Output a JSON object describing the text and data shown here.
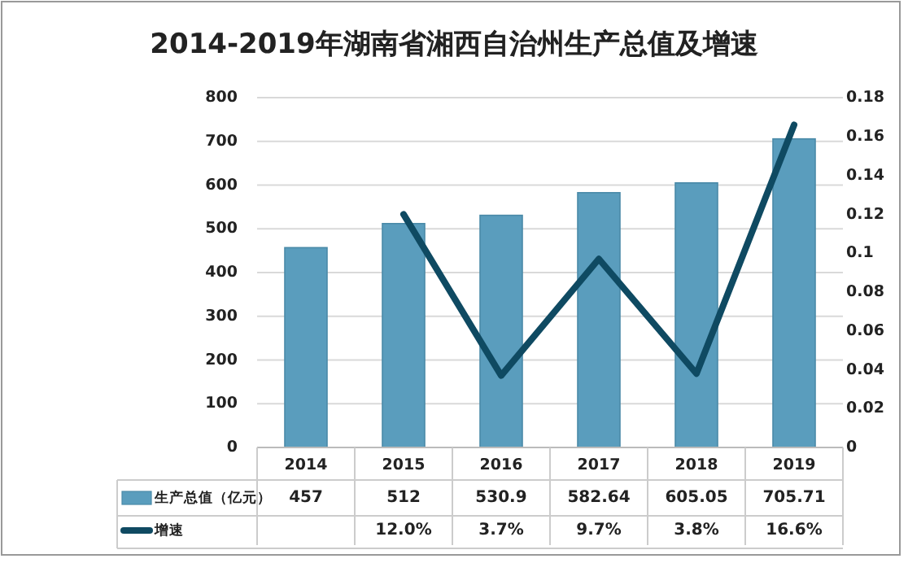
{
  "chart_data": {
    "type": "bar",
    "title": "2014-2019年湖南省湘西自治州生产总值及增速",
    "categories": [
      "2014",
      "2015",
      "2016",
      "2017",
      "2018",
      "2019"
    ],
    "series": [
      {
        "name": "生产总值（亿元）",
        "color": "#5a9dbd",
        "values": [
          457,
          512,
          530.9,
          582.64,
          605.05,
          705.71
        ],
        "value_labels": [
          "457",
          "512",
          "530.9",
          "582.64",
          "605.05",
          "705.71"
        ]
      },
      {
        "name": "增速",
        "type": "line",
        "axis": "y2",
        "color": "#0f4a62",
        "values": [
          null,
          0.12,
          0.037,
          0.097,
          0.038,
          0.166
        ],
        "value_labels": [
          null,
          "12.0%",
          "3.7%",
          "9.7%",
          "3.8%",
          "16.6%"
        ]
      }
    ],
    "ylim": [
      0,
      800
    ],
    "yticks": [
      0,
      100,
      200,
      300,
      400,
      500,
      600,
      700,
      800
    ],
    "y2lim": [
      0,
      0.18
    ],
    "y2ticks": [
      0,
      {
        "value": 0.02,
        "label": "0.02"
      },
      {
        "value": 0.04,
        "label": "0.04"
      },
      {
        "value": 0.06,
        "label": "0.06"
      },
      {
        "value": 0.08,
        "label": "0.08"
      },
      {
        "value": 0.1,
        "label": "0.1"
      },
      {
        "value": 0.12,
        "label": "0.12"
      },
      {
        "value": 0.14,
        "label": "0.14"
      },
      {
        "value": 0.16,
        "label": "0.16"
      },
      {
        "value": 0.18,
        "label": "0.18"
      }
    ],
    "grid": "y",
    "legend": "bottom"
  }
}
